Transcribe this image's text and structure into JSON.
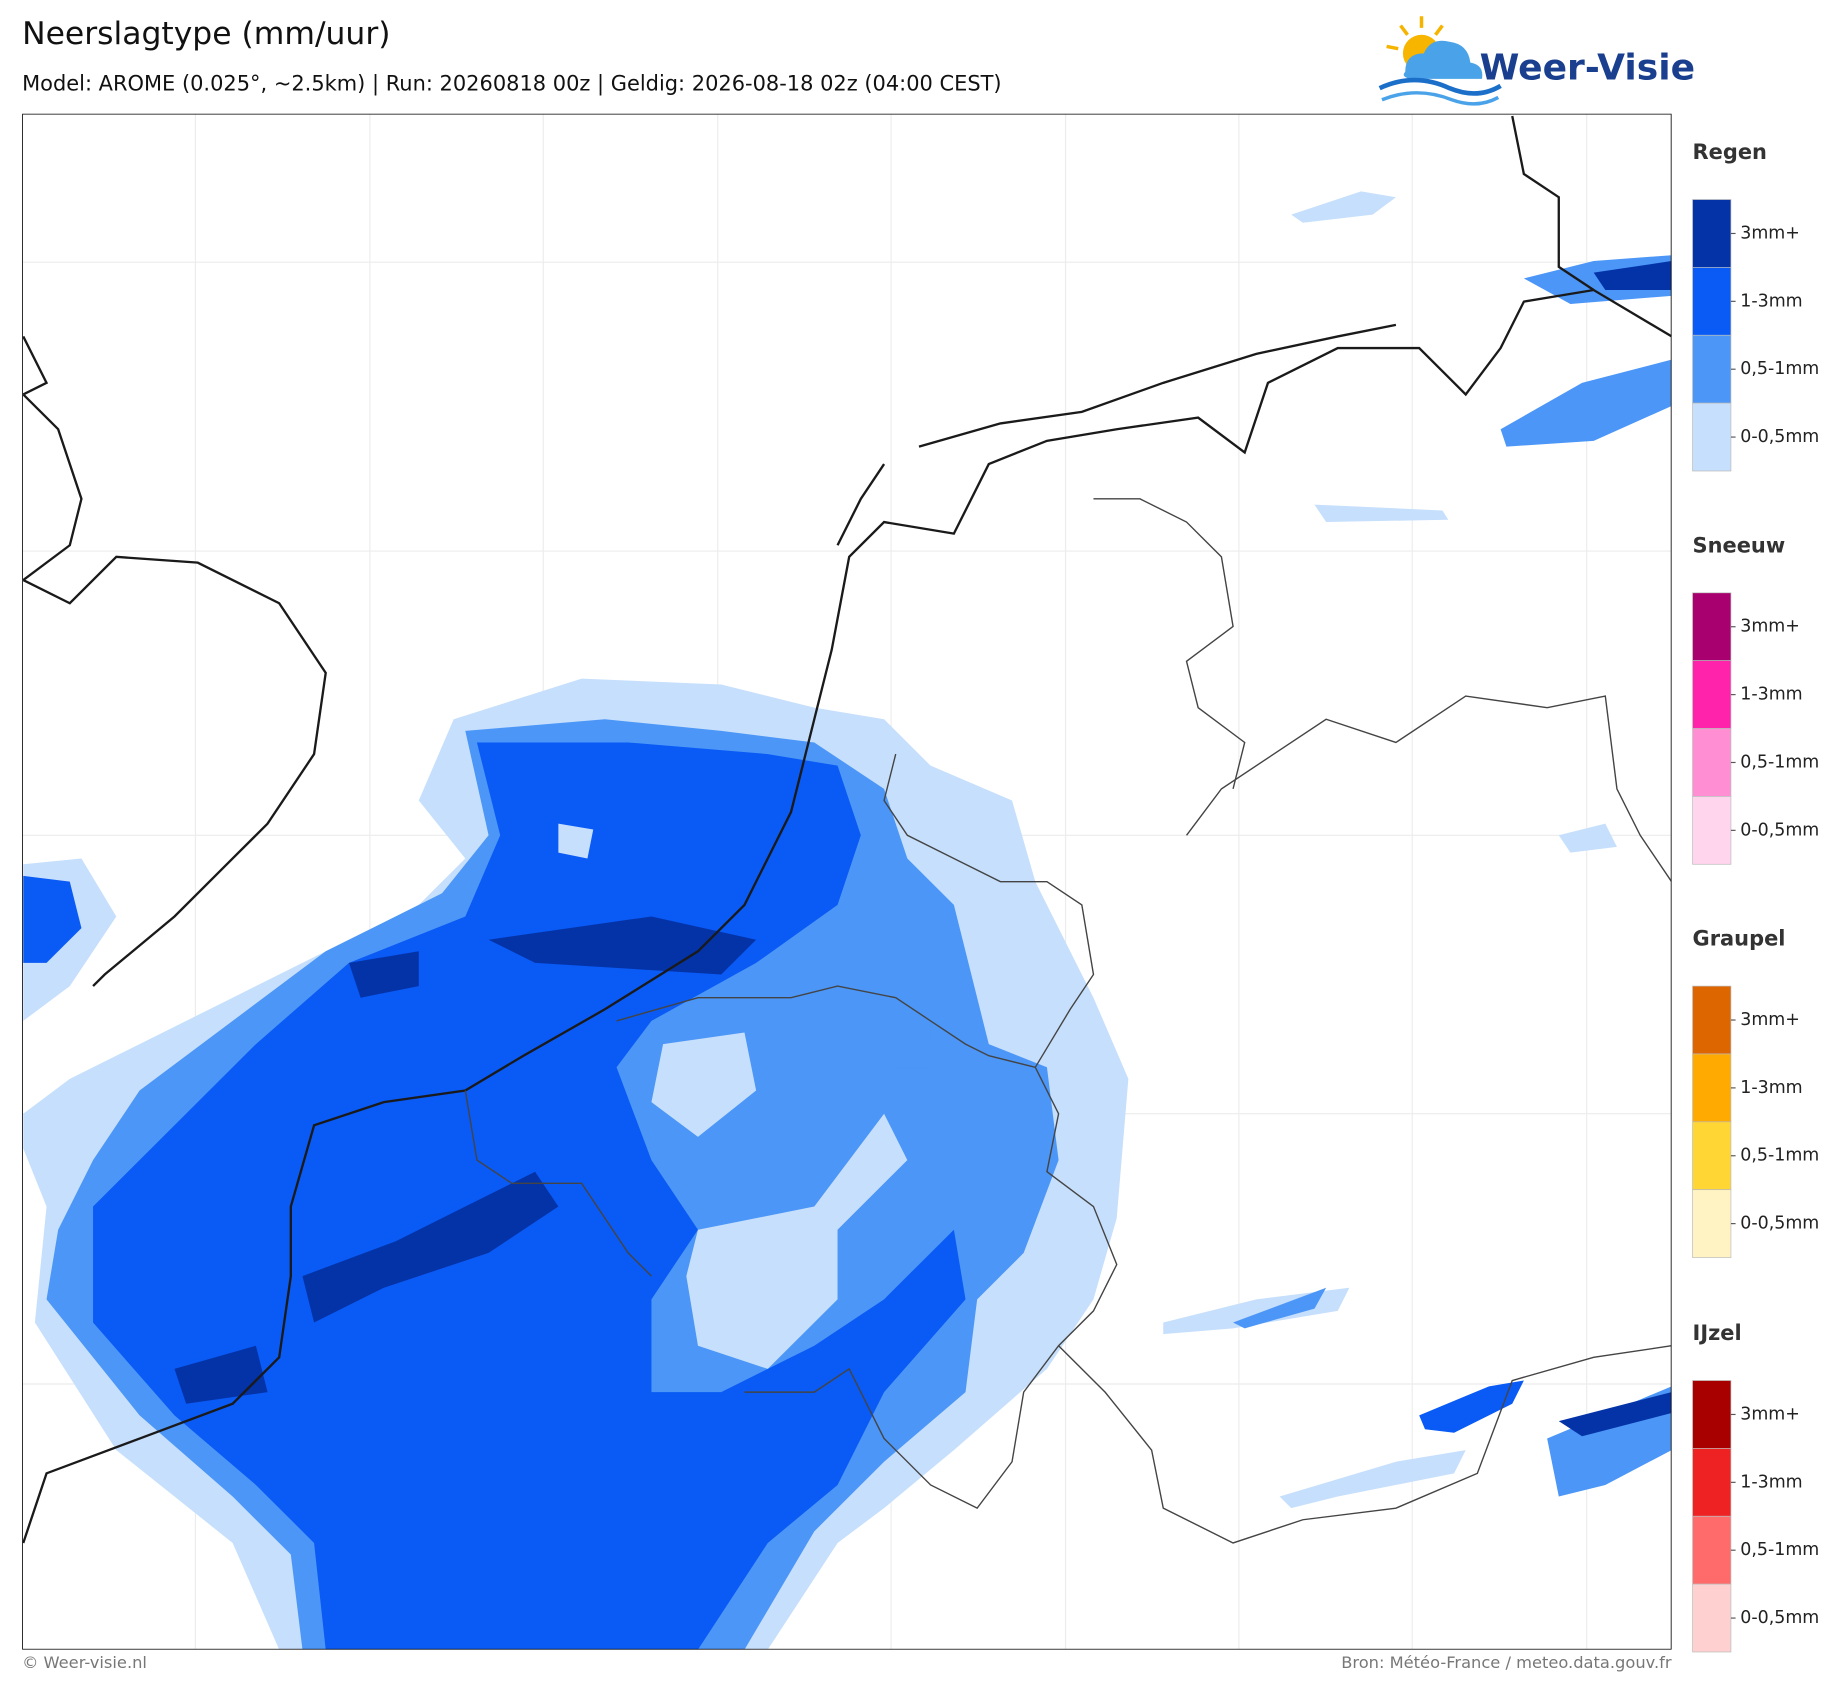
{
  "header": {
    "title": "Neerslagtype (mm/uur)",
    "subtitle": "Model: AROME (0.025°, ~2.5km)  |  Run: 20260818 00z  |  Geldig: 2026-08-18 02z (04:00 CEST)",
    "logo": "Weer-Visie"
  },
  "legend": [
    {
      "name": "Regen",
      "levels": [
        {
          "label": "3mm+",
          "color": "#0433a8"
        },
        {
          "label": "1-3mm",
          "color": "#0a5af5"
        },
        {
          "label": "0,5-1mm",
          "color": "#4b96f7"
        },
        {
          "label": "0-0,5mm",
          "color": "#c6dffc"
        }
      ]
    },
    {
      "name": "Sneeuw",
      "levels": [
        {
          "label": "3mm+",
          "color": "#a8006e"
        },
        {
          "label": "1-3mm",
          "color": "#ff22aa"
        },
        {
          "label": "0,5-1mm",
          "color": "#ff8ed2"
        },
        {
          "label": "0-0,5mm",
          "color": "#ffd5ee"
        }
      ]
    },
    {
      "name": "Graupel",
      "levels": [
        {
          "label": "3mm+",
          "color": "#dd6600"
        },
        {
          "label": "1-3mm",
          "color": "#ffaa00"
        },
        {
          "label": "0,5-1mm",
          "color": "#ffd633"
        },
        {
          "label": "0-0,5mm",
          "color": "#fff3c4"
        }
      ]
    },
    {
      "name": "IJzel",
      "levels": [
        {
          "label": "3mm+",
          "color": "#a80000"
        },
        {
          "label": "1-3mm",
          "color": "#ee2222"
        },
        {
          "label": "0,5-1mm",
          "color": "#ff6b6b"
        },
        {
          "label": "0-0,5mm",
          "color": "#ffd0d0"
        }
      ]
    }
  ],
  "footer": {
    "left": "© Weer-visie.nl",
    "right": "Bron: Météo-France / meteo.data.gouv.fr"
  }
}
